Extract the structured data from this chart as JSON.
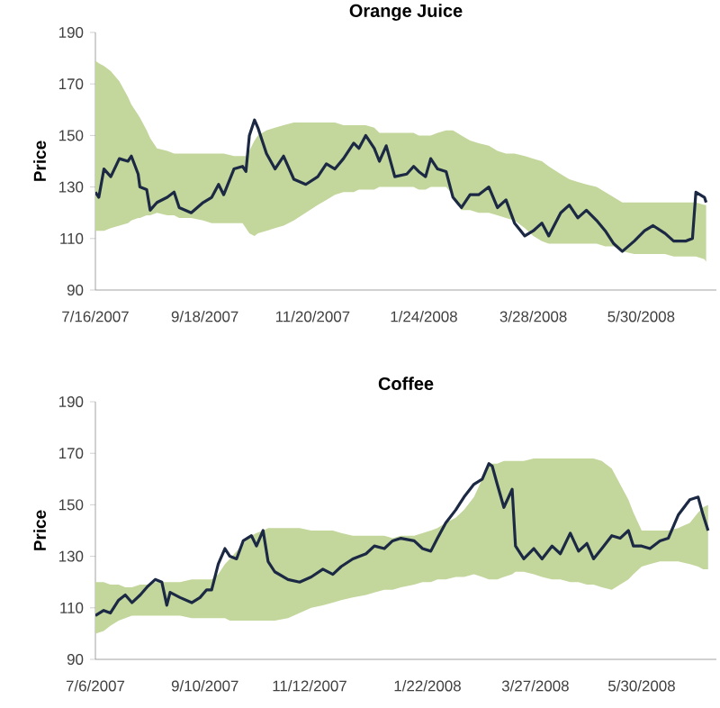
{
  "chart_data": [
    {
      "type": "line",
      "title": "Orange Juice",
      "ylabel": "Price",
      "marker": "none",
      "xlim": [
        "2007-07-16",
        "2008-07-13"
      ],
      "ylim": [
        90,
        190
      ],
      "yticks": [
        90,
        110,
        130,
        150,
        170,
        190
      ],
      "xticks": [
        {
          "value": "2007-07-16",
          "label": "7/16/2007"
        },
        {
          "value": "2007-09-18",
          "label": "9/18/2007"
        },
        {
          "value": "2007-11-20",
          "label": "11/20/2007"
        },
        {
          "value": "2008-01-24",
          "label": "1/24/2008"
        },
        {
          "value": "2008-03-28",
          "label": "3/28/2008"
        },
        {
          "value": "2008-05-30",
          "label": "5/30/2008"
        }
      ],
      "x": [
        "2007-07-16",
        "2007-07-18",
        "2007-07-21",
        "2007-07-25",
        "2007-07-30",
        "2007-08-04",
        "2007-08-06",
        "2007-08-10",
        "2007-08-11",
        "2007-08-15",
        "2007-08-17",
        "2007-08-21",
        "2007-08-27",
        "2007-08-31",
        "2007-09-03",
        "2007-09-10",
        "2007-09-17",
        "2007-09-22",
        "2007-09-26",
        "2007-09-29",
        "2007-10-05",
        "2007-10-10",
        "2007-10-12",
        "2007-10-14",
        "2007-10-17",
        "2007-10-19",
        "2007-10-24",
        "2007-10-29",
        "2007-11-03",
        "2007-11-09",
        "2007-11-16",
        "2007-11-23",
        "2007-11-28",
        "2007-12-03",
        "2007-12-08",
        "2007-12-14",
        "2007-12-17",
        "2007-12-21",
        "2007-12-26",
        "2007-12-29",
        "2008-01-02",
        "2008-01-07",
        "2008-01-14",
        "2008-01-18",
        "2008-01-21",
        "2008-01-25",
        "2008-01-28",
        "2008-02-01",
        "2008-02-06",
        "2008-02-10",
        "2008-02-15",
        "2008-02-20",
        "2008-02-25",
        "2008-03-02",
        "2008-03-07",
        "2008-03-12",
        "2008-03-17",
        "2008-03-23",
        "2008-03-28",
        "2008-04-02",
        "2008-04-06",
        "2008-04-13",
        "2008-04-18",
        "2008-04-23",
        "2008-04-28",
        "2008-05-04",
        "2008-05-09",
        "2008-05-14",
        "2008-05-19",
        "2008-05-26",
        "2008-06-01",
        "2008-06-06",
        "2008-06-13",
        "2008-06-18",
        "2008-06-25",
        "2008-06-29",
        "2008-07-01",
        "2008-07-06",
        "2008-07-07"
      ],
      "series": [
        {
          "color": "#1c2944",
          "values": [
            128,
            126,
            137,
            134,
            141,
            140,
            142,
            135,
            130,
            129,
            121,
            124,
            126,
            128,
            122,
            120,
            124,
            126,
            131,
            127,
            137,
            138,
            136,
            150,
            156,
            153,
            143,
            137,
            142,
            133,
            131,
            134,
            139,
            137,
            141,
            147,
            145,
            150,
            145,
            140,
            146,
            134,
            135,
            138,
            136,
            134,
            141,
            137,
            136,
            126,
            122,
            127,
            127,
            130,
            122,
            125,
            116,
            111,
            113,
            116,
            111,
            120,
            123,
            118,
            121,
            117,
            113,
            108,
            105,
            109,
            113,
            115,
            112,
            109,
            109,
            110,
            128,
            126,
            124
          ],
          "lower": [
            113,
            113,
            113,
            114,
            115,
            116,
            117,
            118,
            118,
            119,
            119,
            120,
            119,
            119,
            118,
            118,
            117,
            116,
            116,
            116,
            116,
            116,
            114,
            112,
            111,
            112,
            113,
            114,
            115,
            117,
            120,
            123,
            125,
            127,
            128,
            128,
            129,
            129,
            129,
            130,
            130,
            130,
            130,
            130,
            129,
            129,
            130,
            130,
            130,
            127,
            121,
            121,
            120,
            120,
            119,
            118,
            117,
            114,
            111,
            109,
            108,
            108,
            108,
            108,
            108,
            108,
            107,
            107,
            105,
            104,
            104,
            104,
            104,
            103,
            103,
            103,
            103,
            102,
            101
          ],
          "upper": [
            179,
            178,
            177,
            175,
            171,
            165,
            162,
            158,
            157,
            152,
            149,
            145,
            144,
            143,
            143,
            143,
            143,
            143,
            143,
            143,
            142,
            142,
            142,
            144,
            148,
            150,
            152,
            153,
            154,
            155,
            155,
            155,
            155,
            155,
            154,
            154,
            154,
            154,
            153,
            151,
            151,
            151,
            151,
            151,
            150,
            150,
            150,
            151,
            152,
            152,
            150,
            148,
            147,
            146,
            144,
            143,
            143,
            142,
            141,
            140,
            138,
            135,
            133,
            132,
            131,
            130,
            128,
            126,
            124,
            124,
            124,
            124,
            124,
            124,
            124,
            124,
            124,
            123,
            123
          ]
        }
      ]
    },
    {
      "type": "line",
      "title": "Coffee",
      "ylabel": "Price",
      "marker": "none",
      "xlim": [
        "2007-07-06",
        "2008-07-14"
      ],
      "ylim": [
        90,
        190
      ],
      "yticks": [
        90,
        110,
        130,
        150,
        170,
        190
      ],
      "xticks": [
        {
          "value": "2007-07-06",
          "label": "7/6/2007"
        },
        {
          "value": "2007-09-10",
          "label": "9/10/2007"
        },
        {
          "value": "2007-11-12",
          "label": "11/12/2007"
        },
        {
          "value": "2008-01-22",
          "label": "1/22/2008"
        },
        {
          "value": "2008-03-27",
          "label": "3/27/2008"
        },
        {
          "value": "2008-05-30",
          "label": "5/30/2008"
        }
      ],
      "x": [
        "2007-07-06",
        "2007-07-11",
        "2007-07-15",
        "2007-07-20",
        "2007-07-24",
        "2007-07-28",
        "2007-08-02",
        "2007-08-06",
        "2007-08-11",
        "2007-08-15",
        "2007-08-18",
        "2007-08-20",
        "2007-08-26",
        "2007-09-02",
        "2007-09-07",
        "2007-09-11",
        "2007-09-14",
        "2007-09-18",
        "2007-09-22",
        "2007-09-25",
        "2007-09-29",
        "2007-10-03",
        "2007-10-08",
        "2007-10-11",
        "2007-10-15",
        "2007-10-18",
        "2007-10-22",
        "2007-10-30",
        "2007-11-06",
        "2007-11-13",
        "2007-11-20",
        "2007-11-26",
        "2007-12-01",
        "2007-12-08",
        "2007-12-16",
        "2007-12-21",
        "2007-12-27",
        "2008-01-01",
        "2008-01-06",
        "2008-01-14",
        "2008-01-19",
        "2008-01-24",
        "2008-01-28",
        "2008-02-02",
        "2008-02-08",
        "2008-02-13",
        "2008-02-19",
        "2008-02-24",
        "2008-02-28",
        "2008-03-01",
        "2008-03-04",
        "2008-03-08",
        "2008-03-13",
        "2008-03-15",
        "2008-03-20",
        "2008-03-26",
        "2008-03-31",
        "2008-04-06",
        "2008-04-11",
        "2008-04-17",
        "2008-04-22",
        "2008-04-27",
        "2008-05-01",
        "2008-05-06",
        "2008-05-12",
        "2008-05-17",
        "2008-05-22",
        "2008-05-25",
        "2008-05-30",
        "2008-06-04",
        "2008-06-10",
        "2008-06-15",
        "2008-06-21",
        "2008-06-28",
        "2008-07-03",
        "2008-07-06",
        "2008-07-09"
      ],
      "series": [
        {
          "color": "#1c2944",
          "values": [
            107,
            109,
            108,
            113,
            115,
            112,
            115,
            118,
            121,
            120,
            111,
            116,
            114,
            112,
            114,
            117,
            117,
            127,
            133,
            130,
            129,
            136,
            138,
            134,
            140,
            128,
            124,
            121,
            120,
            122,
            125,
            123,
            126,
            129,
            131,
            134,
            133,
            136,
            137,
            136,
            133,
            132,
            137,
            143,
            148,
            153,
            158,
            160,
            166,
            165,
            158,
            149,
            156,
            134,
            129,
            133,
            129,
            134,
            131,
            139,
            132,
            135,
            129,
            133,
            138,
            137,
            140,
            134,
            134,
            133,
            136,
            137,
            146,
            152,
            153,
            146,
            140
          ],
          "lower": [
            100,
            101,
            103,
            105,
            106,
            107,
            107,
            107,
            107,
            107,
            107,
            107,
            107,
            106,
            106,
            106,
            106,
            106,
            106,
            105,
            105,
            105,
            105,
            105,
            105,
            105,
            105,
            106,
            108,
            110,
            111,
            112,
            113,
            114,
            115,
            116,
            117,
            117,
            118,
            119,
            120,
            120,
            121,
            121,
            122,
            122,
            123,
            122,
            121,
            121,
            121,
            122,
            123,
            124,
            124,
            123,
            122,
            121,
            121,
            120,
            120,
            119,
            119,
            118,
            117,
            119,
            121,
            123,
            126,
            127,
            128,
            128,
            128,
            127,
            126,
            125,
            125
          ],
          "upper": [
            120,
            120,
            119,
            119,
            118,
            118,
            119,
            119,
            120,
            120,
            120,
            120,
            120,
            121,
            121,
            121,
            121,
            123,
            127,
            129,
            132,
            135,
            138,
            139,
            140,
            141,
            141,
            141,
            141,
            140,
            140,
            140,
            139,
            138,
            138,
            138,
            138,
            137,
            138,
            138,
            139,
            140,
            141,
            143,
            145,
            148,
            153,
            160,
            166,
            166,
            166,
            167,
            167,
            167,
            167,
            168,
            168,
            168,
            168,
            168,
            168,
            168,
            168,
            167,
            164,
            158,
            152,
            147,
            140,
            140,
            140,
            140,
            141,
            143,
            147,
            149,
            150
          ]
        }
      ]
    }
  ]
}
